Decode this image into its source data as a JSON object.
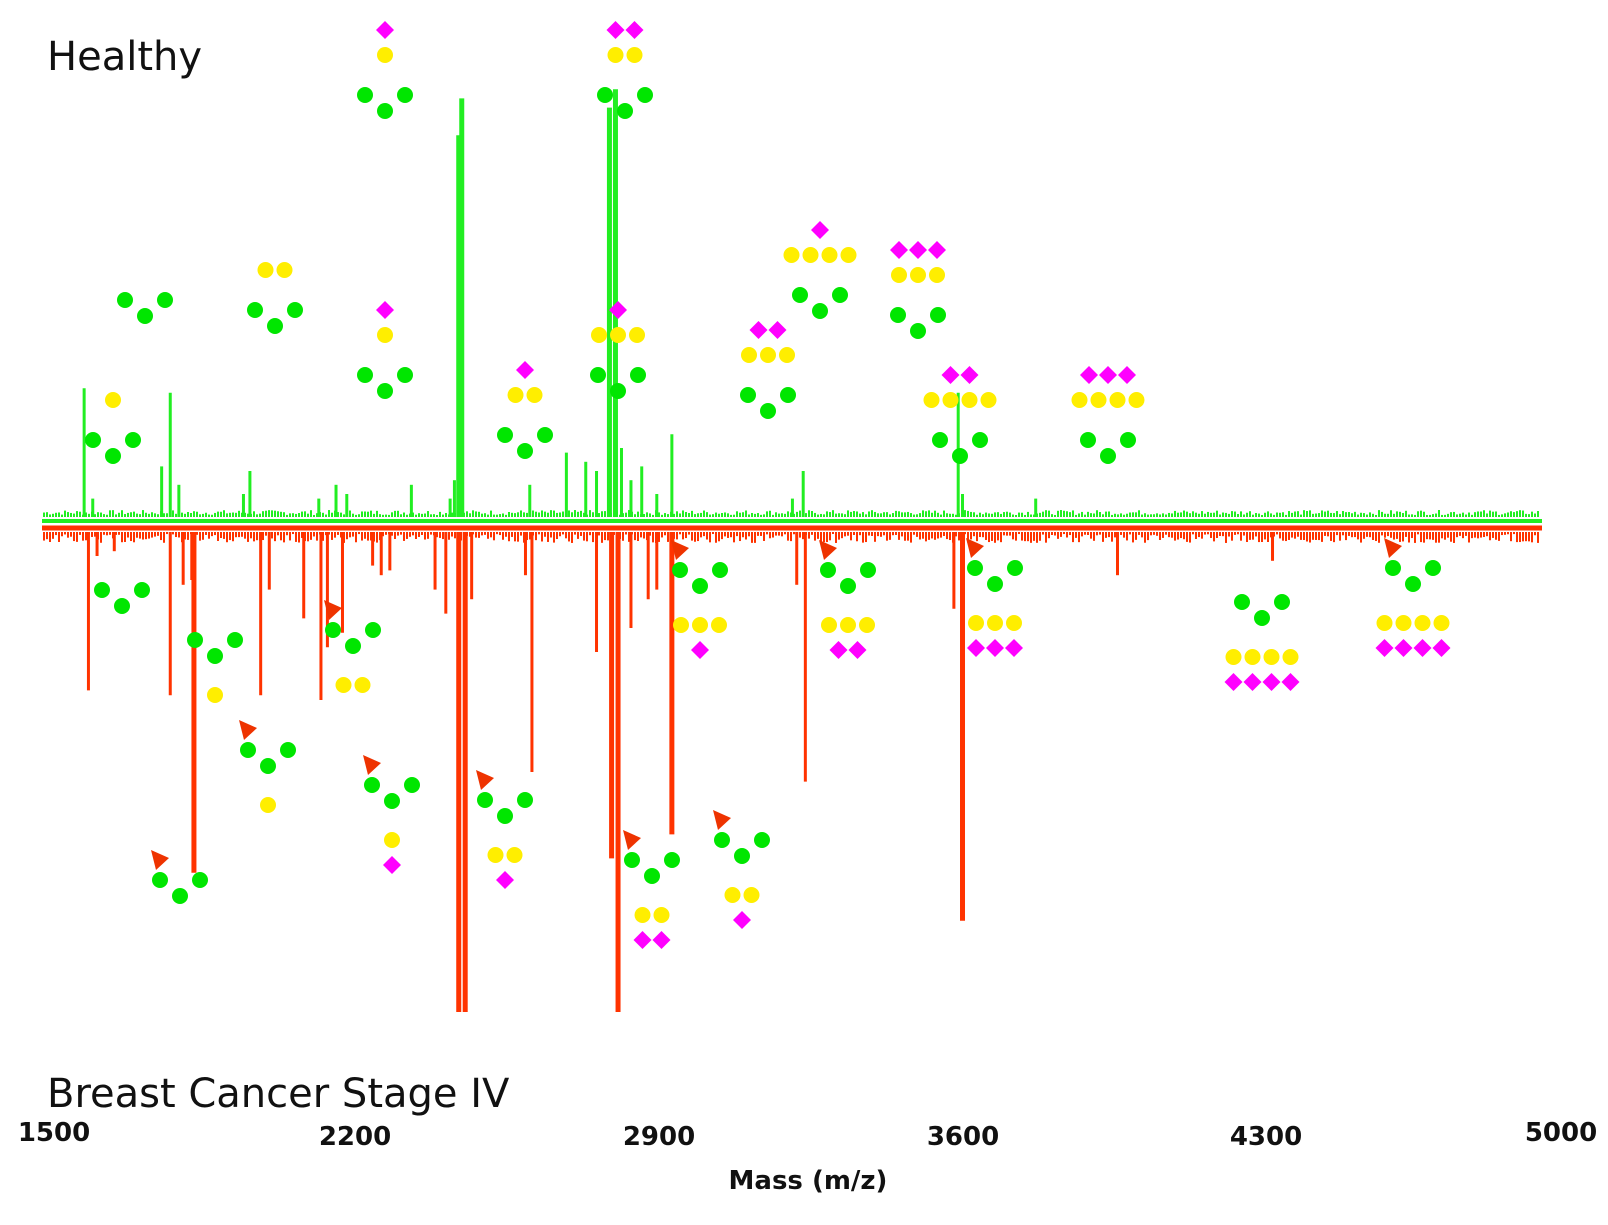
{
  "chart_data": {
    "type": "bar",
    "subtype": "mirror-mass-spectrum",
    "xlabel": "Mass (m/z)",
    "xlim": [
      1500,
      5000
    ],
    "xticks": [
      1500,
      2200,
      2900,
      3600,
      4300,
      5000
    ],
    "ylim": [
      -100,
      100
    ],
    "grid": false,
    "colors": {
      "healthy": "#22ee22",
      "cancer": "#ff3300",
      "glcnac": "#00e600",
      "galactose": "#ffee00",
      "sialic": "#ff00ff",
      "fucose": "#ee3300"
    },
    "series": [
      {
        "name": "Healthy",
        "direction": "up",
        "peaks": [
          {
            "mz": 1570,
            "value": 28
          },
          {
            "mz": 1590,
            "value": 4
          },
          {
            "mz": 1770,
            "value": 27
          },
          {
            "mz": 1750,
            "value": 11
          },
          {
            "mz": 1790,
            "value": 7
          },
          {
            "mz": 1955,
            "value": 10
          },
          {
            "mz": 1940,
            "value": 5
          },
          {
            "mz": 2115,
            "value": 4
          },
          {
            "mz": 2155,
            "value": 7
          },
          {
            "mz": 2180,
            "value": 5
          },
          {
            "mz": 2330,
            "value": 7
          },
          {
            "mz": 2440,
            "value": 83
          },
          {
            "mz": 2447,
            "value": 91
          },
          {
            "mz": 2430,
            "value": 8
          },
          {
            "mz": 2420,
            "value": 4
          },
          {
            "mz": 2605,
            "value": 7
          },
          {
            "mz": 2690,
            "value": 14
          },
          {
            "mz": 2735,
            "value": 12
          },
          {
            "mz": 2760,
            "value": 10
          },
          {
            "mz": 2790,
            "value": 89
          },
          {
            "mz": 2804,
            "value": 93
          },
          {
            "mz": 2818,
            "value": 15
          },
          {
            "mz": 2840,
            "value": 8
          },
          {
            "mz": 2865,
            "value": 11
          },
          {
            "mz": 2900,
            "value": 5
          },
          {
            "mz": 2935,
            "value": 18
          },
          {
            "mz": 3240,
            "value": 10
          },
          {
            "mz": 3215,
            "value": 4
          },
          {
            "mz": 3600,
            "value": 27
          },
          {
            "mz": 3610,
            "value": 5
          },
          {
            "mz": 3780,
            "value": 4
          }
        ]
      },
      {
        "name": "Breast Cancer Stage IV",
        "direction": "down",
        "peaks": [
          {
            "mz": 1580,
            "value": 33
          },
          {
            "mz": 1600,
            "value": 5
          },
          {
            "mz": 1640,
            "value": 4
          },
          {
            "mz": 1770,
            "value": 34
          },
          {
            "mz": 1800,
            "value": 11
          },
          {
            "mz": 1820,
            "value": 10
          },
          {
            "mz": 1825,
            "value": 71
          },
          {
            "mz": 1980,
            "value": 34
          },
          {
            "mz": 2000,
            "value": 12
          },
          {
            "mz": 2080,
            "value": 18
          },
          {
            "mz": 2120,
            "value": 35
          },
          {
            "mz": 2135,
            "value": 24
          },
          {
            "mz": 2170,
            "value": 21
          },
          {
            "mz": 2240,
            "value": 7
          },
          {
            "mz": 2260,
            "value": 9
          },
          {
            "mz": 2280,
            "value": 8
          },
          {
            "mz": 2385,
            "value": 12
          },
          {
            "mz": 2410,
            "value": 17
          },
          {
            "mz": 2440,
            "value": 100
          },
          {
            "mz": 2455,
            "value": 100
          },
          {
            "mz": 2470,
            "value": 14
          },
          {
            "mz": 2610,
            "value": 50
          },
          {
            "mz": 2595,
            "value": 9
          },
          {
            "mz": 2760,
            "value": 25
          },
          {
            "mz": 2795,
            "value": 68
          },
          {
            "mz": 2810,
            "value": 100
          },
          {
            "mz": 2840,
            "value": 20
          },
          {
            "mz": 2880,
            "value": 14
          },
          {
            "mz": 2900,
            "value": 12
          },
          {
            "mz": 2935,
            "value": 63
          },
          {
            "mz": 3225,
            "value": 11
          },
          {
            "mz": 3245,
            "value": 52
          },
          {
            "mz": 3590,
            "value": 16
          },
          {
            "mz": 3610,
            "value": 81
          },
          {
            "mz": 3970,
            "value": 9
          },
          {
            "mz": 4330,
            "value": 6
          }
        ]
      }
    ]
  },
  "labels": {
    "top_panel": "Healthy",
    "bottom_panel": "Breast Cancer Stage IV",
    "xlabel": "Mass (m/z)",
    "ticks": [
      "1500",
      "2200",
      "2900",
      "3600",
      "4300",
      "5000"
    ]
  },
  "glycan_annotations": [
    {
      "mz": 1570,
      "side": "up",
      "antennae": 3,
      "galactose": 1,
      "sialic": 0,
      "fucose": false
    },
    {
      "mz": 1770,
      "side": "up",
      "antennae": 3,
      "galactose": 0,
      "sialic": 0,
      "fucose": false
    },
    {
      "mz": 1955,
      "side": "up",
      "antennae": 2,
      "galactose": 2,
      "sialic": 0,
      "fucose": false
    },
    {
      "mz": 2120,
      "side": "up",
      "antennae": 3,
      "galactose": 1,
      "sialic": 1,
      "fucose": false
    },
    {
      "mz": 2440,
      "side": "up",
      "antennae": 2,
      "galactose": 1,
      "sialic": 1,
      "fucose": false
    },
    {
      "mz": 2605,
      "side": "up",
      "antennae": 2,
      "galactose": 2,
      "sialic": 1,
      "fucose": false
    },
    {
      "mz": 2804,
      "side": "up",
      "antennae": 2,
      "galactose": 2,
      "sialic": 2,
      "fucose": false
    },
    {
      "mz": 2935,
      "side": "up",
      "antennae": 2,
      "galactose": 3,
      "sialic": 1,
      "fucose": false
    },
    {
      "mz": 3240,
      "side": "up",
      "antennae": 2,
      "galactose": 3,
      "sialic": 2,
      "fucose": false
    },
    {
      "mz": 3400,
      "side": "up",
      "antennae": 2,
      "galactose": 4,
      "sialic": 1,
      "fucose": false
    },
    {
      "mz": 3600,
      "side": "up",
      "antennae": 2,
      "galactose": 3,
      "sialic": 3,
      "fucose": false
    },
    {
      "mz": 3700,
      "side": "up",
      "antennae": 2,
      "galactose": 4,
      "sialic": 2,
      "fucose": false
    },
    {
      "mz": 3970,
      "side": "up",
      "antennae": 2,
      "galactose": 4,
      "sialic": 3,
      "fucose": false
    },
    {
      "mz": 1580,
      "side": "down",
      "antennae": 2,
      "galactose": 0,
      "sialic": 0,
      "fucose": false
    },
    {
      "mz": 1825,
      "side": "down",
      "antennae": 2,
      "galactose": 0,
      "sialic": 0,
      "fucose": true
    },
    {
      "mz": 1980,
      "side": "down",
      "antennae": 2,
      "galactose": 1,
      "sialic": 0,
      "fucose": false
    },
    {
      "mz": 2000,
      "side": "down",
      "antennae": 2,
      "galactose": 1,
      "sialic": 0,
      "fucose": true
    },
    {
      "mz": 2170,
      "side": "down",
      "antennae": 2,
      "galactose": 2,
      "sialic": 0,
      "fucose": true
    },
    {
      "mz": 2240,
      "side": "down",
      "antennae": 2,
      "galactose": 1,
      "sialic": 1,
      "fucose": true
    },
    {
      "mz": 2440,
      "side": "down",
      "antennae": 2,
      "galactose": 2,
      "sialic": 1,
      "fucose": true
    },
    {
      "mz": 2810,
      "side": "down",
      "antennae": 2,
      "galactose": 2,
      "sialic": 2,
      "fucose": true
    },
    {
      "mz": 2935,
      "side": "down",
      "antennae": 2,
      "galactose": 3,
      "sialic": 1,
      "fucose": true
    },
    {
      "mz": 3060,
      "side": "down",
      "antennae": 2,
      "galactose": 2,
      "sialic": 1,
      "fucose": true
    },
    {
      "mz": 3245,
      "side": "down",
      "antennae": 2,
      "galactose": 3,
      "sialic": 2,
      "fucose": true
    },
    {
      "mz": 3610,
      "side": "down",
      "antennae": 2,
      "galactose": 3,
      "sialic": 3,
      "fucose": true
    },
    {
      "mz": 4330,
      "side": "down",
      "antennae": 2,
      "galactose": 4,
      "sialic": 4,
      "fucose": false
    },
    {
      "mz": 4650,
      "side": "down",
      "antennae": 2,
      "galactose": 4,
      "sialic": 4,
      "fucose": true
    }
  ]
}
